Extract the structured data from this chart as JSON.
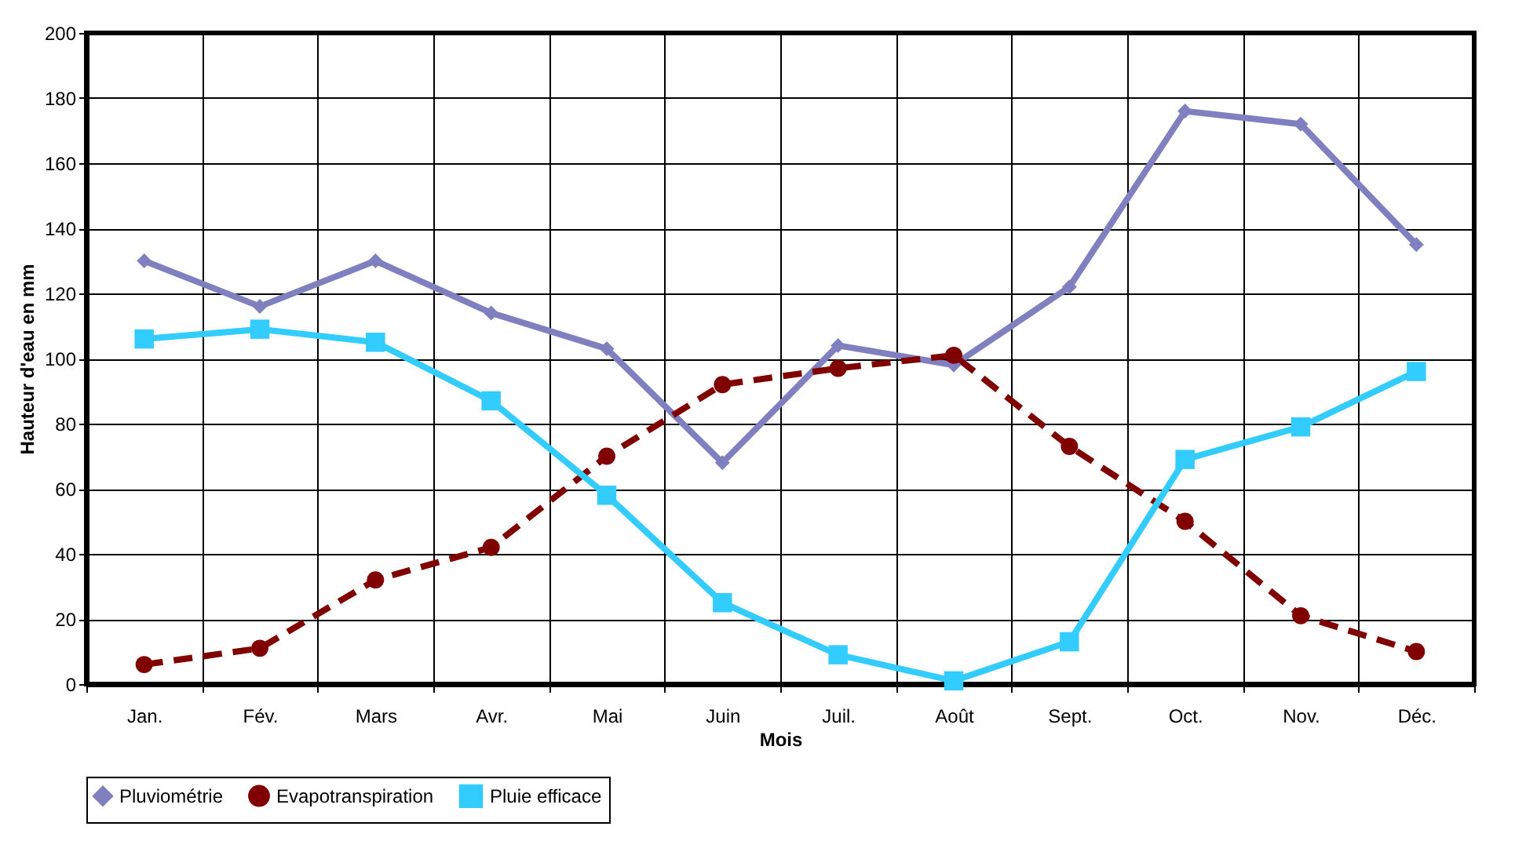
{
  "chart_data": {
    "type": "line",
    "xlabel": "Mois",
    "ylabel": "Hauteur d'eau en mm",
    "categories": [
      "Jan.",
      "Fév.",
      "Mars",
      "Avr.",
      "Mai",
      "Juin",
      "Juil.",
      "Août",
      "Sept.",
      "Oct.",
      "Nov.",
      "Déc."
    ],
    "series": [
      {
        "name": "Pluviométrie",
        "color": "#8080c0",
        "marker": "diamond",
        "line_style": "solid",
        "values": [
          130,
          116,
          130,
          114,
          103,
          68,
          104,
          98,
          122,
          176,
          172,
          135
        ]
      },
      {
        "name": "Evapotranspiration",
        "color": "#800000",
        "marker": "circle",
        "line_style": "dashed",
        "values": [
          6,
          11,
          32,
          42,
          70,
          92,
          97,
          101,
          73,
          50,
          21,
          10
        ]
      },
      {
        "name": "Pluie efficace",
        "color": "#33ccff",
        "marker": "square",
        "line_style": "solid",
        "values": [
          106,
          109,
          105,
          87,
          58,
          25,
          9,
          1,
          13,
          69,
          79,
          96
        ]
      }
    ],
    "ylim": [
      0,
      200
    ],
    "yticks": [
      0,
      20,
      40,
      60,
      80,
      100,
      120,
      140,
      160,
      180,
      200
    ],
    "grid": true,
    "legend": "bottom"
  }
}
